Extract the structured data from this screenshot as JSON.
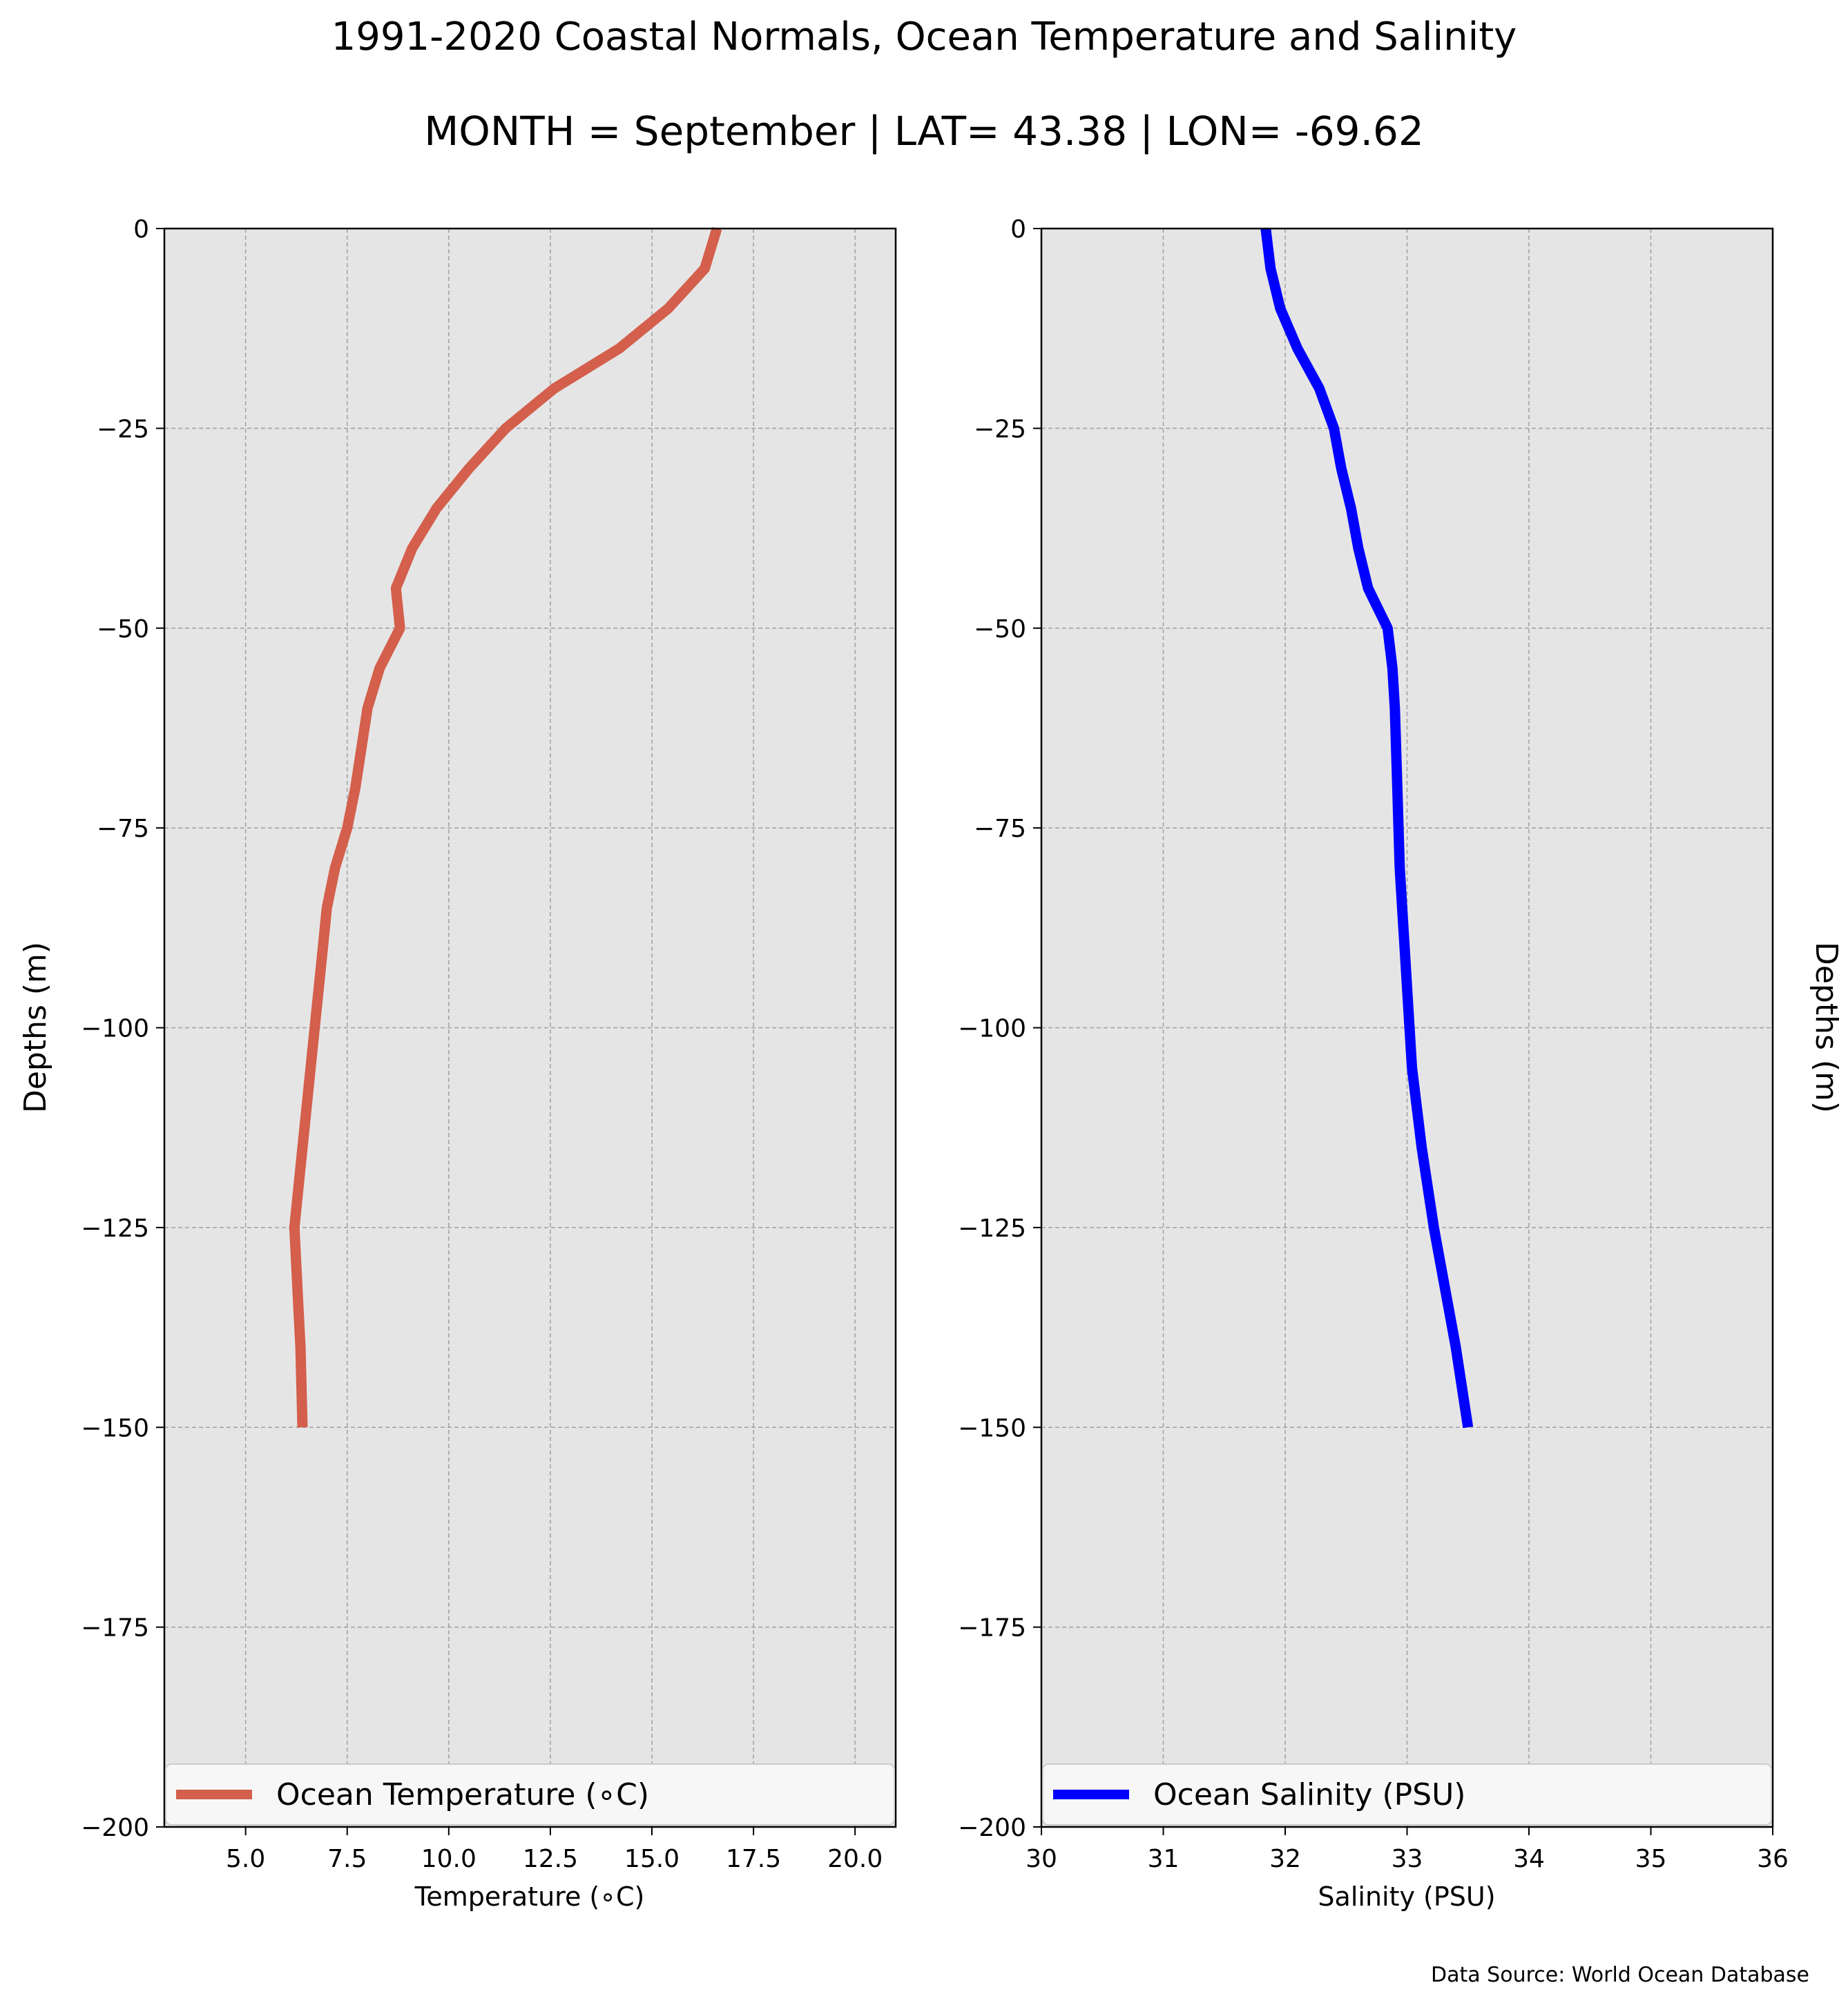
{
  "title": "1991-2020 Coastal Normals, Ocean Temperature and Salinity",
  "subtitle": "MONTH = September | LAT= 43.38 | LON= -69.62",
  "source": "Data Source: World Ocean Database",
  "colors": {
    "plot_background": "#e6e5e6",
    "grid": "#a0a0a0",
    "temperature": "#d35f4c",
    "salinity": "#0000ff"
  },
  "chart_data": [
    {
      "type": "line",
      "xlabel": "Temperature ($^\\circ$C)",
      "xlabel_display": "Temperature (∘C)",
      "ylabel": "Depths (m)",
      "ylabel_side": "left",
      "xlim": [
        3,
        21
      ],
      "ylim": [
        -200,
        0
      ],
      "xticks": [
        5,
        7.5,
        10,
        12.5,
        15,
        17.5,
        20
      ],
      "xtick_labels": [
        "5.0",
        "7.5",
        "10.0",
        "12.5",
        "15.0",
        "17.5",
        "20.0"
      ],
      "yticks": [
        0,
        -25,
        -50,
        -75,
        -100,
        -125,
        -150,
        -175,
        -200
      ],
      "ytick_labels": [
        "0",
        "−25",
        "−50",
        "−75",
        "−100",
        "−125",
        "−150",
        "−175",
        "−200"
      ],
      "grid": true,
      "legend": {
        "position": "bottom",
        "entry": "Ocean Temperature (∘C)"
      },
      "series": [
        {
          "name": "Ocean Temperature (∘C)",
          "color": "#d35f4c",
          "x": [
            16.6,
            16.3,
            15.4,
            14.2,
            12.6,
            11.4,
            10.5,
            9.7,
            9.1,
            8.7,
            8.8,
            8.3,
            8.0,
            7.7,
            7.5,
            7.2,
            7.0,
            6.9,
            6.8,
            6.6,
            6.4,
            6.2,
            6.25,
            6.3,
            6.35,
            6.4
          ],
          "y": [
            0,
            -5,
            -10,
            -15,
            -20,
            -25,
            -30,
            -35,
            -40,
            -45,
            -50,
            -55,
            -60,
            -70,
            -75,
            -80,
            -85,
            -90,
            -95,
            -105,
            -115,
            -125,
            -130,
            -135,
            -140,
            -150
          ]
        }
      ]
    },
    {
      "type": "line",
      "xlabel": "Salinity (PSU)",
      "ylabel": "Depths (m)",
      "ylabel_side": "right",
      "xlim": [
        30,
        36
      ],
      "ylim": [
        -200,
        0
      ],
      "xticks": [
        30,
        31,
        32,
        33,
        34,
        35,
        36
      ],
      "xtick_labels": [
        "30",
        "31",
        "32",
        "33",
        "34",
        "35",
        "36"
      ],
      "yticks": [
        0,
        -25,
        -50,
        -75,
        -100,
        -125,
        -150,
        -175,
        -200
      ],
      "ytick_labels": [
        "0",
        "−25",
        "−50",
        "−75",
        "−100",
        "−125",
        "−150",
        "−175",
        "−200"
      ],
      "grid": true,
      "legend": {
        "position": "bottom",
        "entry": "Ocean Salinity (PSU)"
      },
      "series": [
        {
          "name": "Ocean Salinity (PSU)",
          "color": "#0000ff",
          "x": [
            31.84,
            31.88,
            31.96,
            32.1,
            32.28,
            32.4,
            32.46,
            32.54,
            32.6,
            32.68,
            32.84,
            32.88,
            32.9,
            32.92,
            32.93,
            32.94,
            32.96,
            32.98,
            33.0,
            33.04,
            33.12,
            33.22,
            33.28,
            33.34,
            33.4,
            33.5
          ],
          "y": [
            0,
            -5,
            -10,
            -15,
            -20,
            -25,
            -30,
            -35,
            -40,
            -45,
            -50,
            -55,
            -60,
            -70,
            -75,
            -80,
            -85,
            -90,
            -95,
            -105,
            -115,
            -125,
            -130,
            -135,
            -140,
            -150
          ]
        }
      ]
    }
  ]
}
